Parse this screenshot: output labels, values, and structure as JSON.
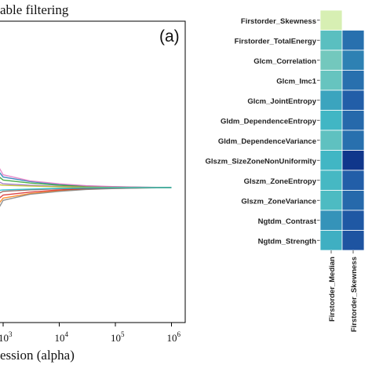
{
  "chart_data": [
    {
      "type": "line",
      "title": "able filtering",
      "panel_label": "(a)",
      "xlabel": "ession (alpha)",
      "xscale": "log",
      "x_ticks": [
        {
          "value": 1000,
          "base": "10",
          "exp": "3"
        },
        {
          "value": 10000,
          "base": "10",
          "exp": "4"
        },
        {
          "value": 100000,
          "base": "10",
          "exp": "5"
        },
        {
          "value": 1000000,
          "base": "10",
          "exp": "6"
        }
      ],
      "series_note_colors": [
        "#1f77b4",
        "#ff7f0e",
        "#2ca02c",
        "#d62728",
        "#9467bd",
        "#8c564b",
        "#e377c2",
        "#7f7f7f",
        "#bcbd22",
        "#17becf"
      ],
      "series_x": [
        100,
        300,
        1000,
        3000,
        10000,
        30000,
        100000,
        300000,
        1000000
      ],
      "series_y": [
        [
          0.03,
          0.022,
          0.014,
          0.008,
          0.004,
          0.002,
          0.001,
          0.0004,
          0.0
        ],
        [
          -0.03,
          -0.022,
          -0.014,
          -0.008,
          -0.004,
          -0.002,
          -0.001,
          -0.0004,
          0.0
        ],
        [
          0.02,
          0.015,
          0.01,
          0.006,
          0.003,
          0.0015,
          0.0007,
          0.0003,
          0.0
        ],
        [
          -0.02,
          -0.015,
          -0.01,
          -0.006,
          -0.003,
          -0.0015,
          -0.0007,
          -0.0003,
          0.0
        ],
        [
          0.01,
          0.008,
          0.005,
          0.003,
          0.0015,
          0.0008,
          0.0004,
          0.0002,
          0.0
        ],
        [
          -0.01,
          -0.008,
          -0.005,
          -0.003,
          -0.0015,
          -0.0008,
          -0.0004,
          -0.0002,
          0.0
        ],
        [
          0.04,
          0.028,
          0.017,
          0.009,
          0.005,
          0.0025,
          0.0012,
          0.0005,
          0.0
        ],
        [
          -0.04,
          -0.028,
          -0.017,
          -0.009,
          -0.005,
          -0.0025,
          -0.0012,
          -0.0005,
          0.0
        ],
        [
          0.005,
          0.004,
          0.003,
          0.002,
          0.001,
          0.0005,
          0.0002,
          0.0001,
          0.0
        ],
        [
          -0.005,
          -0.004,
          -0.003,
          -0.002,
          -0.001,
          -0.0005,
          -0.0002,
          -0.0001,
          0.0
        ]
      ],
      "ylim": [
        -0.2,
        0.2
      ],
      "xlim_exp": [
        1.9,
        6.3
      ]
    },
    {
      "type": "heatmap",
      "rows": [
        "Firstorder_Skewness",
        "Firstorder_TotalEnergy",
        "Glcm_Correlation",
        "Glcm_Imc1",
        "Glcm_JointEntropy",
        "Gldm_DependenceEntropy",
        "Gldm_DependenceVariance",
        "Glszm_SizeZoneNonUniformity",
        "Glszm_ZoneEntropy",
        "Glszm_ZoneVariance",
        "Ngtdm_Contrast",
        "Ngtdm_Strength"
      ],
      "columns": [
        "Firstorder_Median",
        "Firstorder_Skewness"
      ],
      "values": [
        [
          0.05,
          null
        ],
        [
          0.4,
          0.7
        ],
        [
          0.3,
          0.65
        ],
        [
          0.35,
          0.7
        ],
        [
          0.55,
          0.75
        ],
        [
          0.5,
          0.72
        ],
        [
          0.38,
          0.7
        ],
        [
          0.5,
          0.95
        ],
        [
          0.48,
          0.75
        ],
        [
          0.45,
          0.72
        ],
        [
          0.6,
          0.78
        ],
        [
          0.52,
          0.8
        ]
      ],
      "colormap": "YlGnBu"
    }
  ]
}
